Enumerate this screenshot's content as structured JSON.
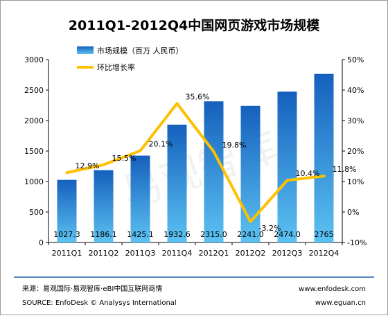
{
  "chart_data": {
    "type": "bar",
    "title": "2011Q1-2012Q4中国网页游戏市场规模",
    "categories": [
      "2011Q1",
      "2011Q2",
      "2011Q3",
      "2011Q4",
      "2012Q1",
      "2012Q2",
      "2012Q3",
      "2012Q4"
    ],
    "series": [
      {
        "name": "市场规模（百万 人民币）",
        "type": "bar",
        "axis": "left",
        "values": [
          1027.3,
          1186.1,
          1425.1,
          1932.6,
          2315.0,
          2241.0,
          2474.0,
          2765
        ],
        "labels": [
          "1027.3",
          "1186.1",
          "1425.1",
          "1932.6",
          "2315.0",
          "2241.0",
          "2474.0",
          "2765"
        ],
        "color": "#2a7fd4"
      },
      {
        "name": "环比增长率",
        "type": "line",
        "axis": "right",
        "values": [
          12.9,
          15.5,
          20.1,
          35.6,
          19.8,
          -3.2,
          10.4,
          11.8
        ],
        "labels": [
          "12.9%",
          "15.5%",
          "20.1%",
          "35.6%",
          "19.8%",
          "-3.2%",
          "10.4%",
          "11.8%"
        ],
        "color": "#ffc000"
      }
    ],
    "y_left": {
      "ylim": [
        0,
        3000
      ],
      "ticks": [
        "0",
        "500",
        "1000",
        "1500",
        "2000",
        "2500",
        "3000"
      ]
    },
    "y_right": {
      "ylim": [
        -10,
        50
      ],
      "ticks": [
        "-10%",
        "0%",
        "10%",
        "20%",
        "30%",
        "40%",
        "50%"
      ]
    },
    "legend": "top-left",
    "grid": false,
    "watermark": "易观智库"
  },
  "footer": {
    "source_cn": "来源：易观国际·易观智库·eBI中国互联网商情",
    "source_en": "SOURCE: EnfoDesk © Analysys International",
    "url1": "www.enfodesk.com",
    "url2": "www.eguan.cn"
  }
}
